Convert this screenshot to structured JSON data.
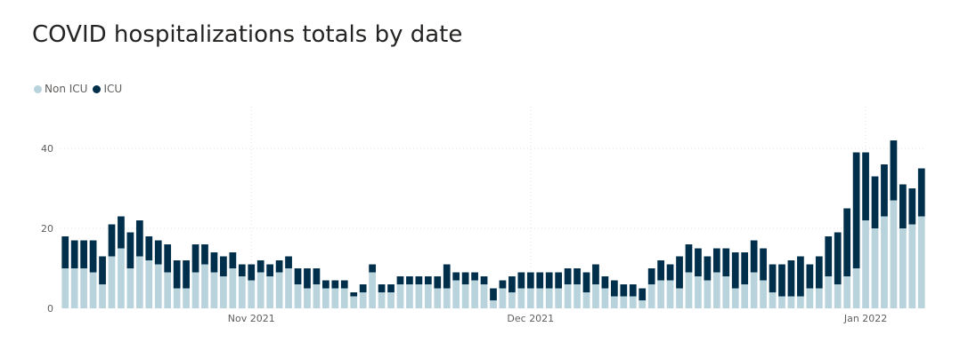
{
  "chart_data": {
    "type": "bar",
    "stacked": true,
    "title": "COVID hospitalizations totals by date",
    "xlabel": "",
    "ylabel": "",
    "ylim": [
      0,
      46
    ],
    "y_ticks": [
      0,
      20,
      40
    ],
    "x_tick_labels": [
      {
        "label": "Nov 2021",
        "index": 20
      },
      {
        "label": "Dec 2021",
        "index": 50
      },
      {
        "label": "Jan 2022",
        "index": 86
      }
    ],
    "grid": true,
    "legend_position": "top-left",
    "series": [
      {
        "name": "Non ICU",
        "color": "#b9d3dc",
        "values": [
          10,
          10,
          10,
          9,
          6,
          13,
          15,
          10,
          13,
          12,
          11,
          9,
          5,
          5,
          9,
          11,
          9,
          8,
          10,
          8,
          7,
          9,
          8,
          9,
          10,
          6,
          5,
          6,
          5,
          5,
          5,
          3,
          4,
          9,
          4,
          4,
          6,
          6,
          6,
          6,
          5,
          5,
          7,
          6,
          7,
          6,
          2,
          5,
          4,
          5,
          5,
          5,
          5,
          5,
          6,
          6,
          4,
          6,
          5,
          3,
          3,
          3,
          2,
          6,
          7,
          7,
          5,
          9,
          8,
          7,
          9,
          8,
          5,
          6,
          9,
          7,
          4,
          3,
          3,
          3,
          5,
          5,
          8,
          6,
          8,
          10,
          22,
          20,
          23,
          27,
          20,
          21,
          23
        ]
      },
      {
        "name": "ICU",
        "color": "#002f4b",
        "values": [
          8,
          7,
          7,
          8,
          7,
          8,
          8,
          9,
          9,
          6,
          6,
          7,
          7,
          7,
          7,
          5,
          5,
          5,
          4,
          3,
          4,
          3,
          3,
          3,
          3,
          4,
          5,
          4,
          2,
          2,
          2,
          1,
          2,
          2,
          2,
          2,
          2,
          2,
          2,
          2,
          3,
          6,
          2,
          3,
          2,
          2,
          3,
          2,
          4,
          4,
          4,
          4,
          4,
          4,
          4,
          4,
          5,
          5,
          3,
          4,
          3,
          3,
          3,
          4,
          5,
          4,
          8,
          7,
          7,
          6,
          6,
          7,
          9,
          8,
          8,
          8,
          7,
          8,
          9,
          10,
          6,
          8,
          10,
          13,
          17,
          29,
          17,
          13,
          13,
          15,
          11,
          9,
          12
        ]
      }
    ]
  }
}
